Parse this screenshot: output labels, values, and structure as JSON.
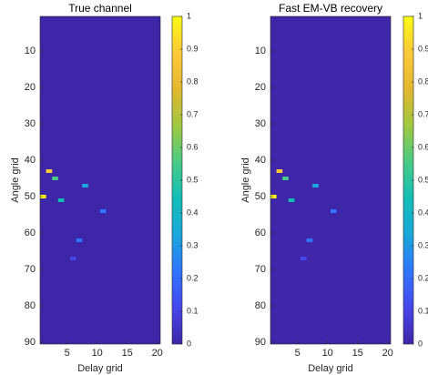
{
  "chart_data": [
    {
      "type": "heatmap",
      "title": "True channel",
      "xlabel": "Delay grid",
      "ylabel": "Angle grid",
      "x": [
        1,
        2,
        3,
        4,
        8,
        11,
        7,
        6
      ],
      "y": [
        50,
        43,
        45,
        51,
        47,
        54,
        62,
        67
      ],
      "values": [
        1,
        0.85,
        0.55,
        0.45,
        0.3,
        0.25,
        0.22,
        0.15
      ],
      "xlim": [
        0.5,
        20.5
      ],
      "ylim": [
        90.5,
        0.5
      ],
      "xticks": [
        5,
        10,
        15,
        20
      ],
      "yticks": [
        10,
        20,
        30,
        40,
        50,
        60,
        70,
        80,
        90
      ],
      "clim": [
        0,
        1
      ],
      "cticks": [
        0,
        0.1,
        0.2,
        0.3,
        0.4,
        0.5,
        0.6,
        0.7,
        0.8,
        0.9,
        1
      ],
      "colormap": [
        "#3e26a8",
        "#4746eb",
        "#2f75fe",
        "#1aa7da",
        "#13beb7",
        "#48cb86",
        "#9fc840",
        "#e3b82f",
        "#fcc938",
        "#f9fb15"
      ]
    },
    {
      "type": "heatmap",
      "title": "Fast EM-VB recovery",
      "xlabel": "Delay grid",
      "ylabel": "Angle grid",
      "x": [
        1,
        2,
        3,
        4,
        8,
        11,
        7,
        6
      ],
      "y": [
        50,
        43,
        45,
        51,
        47,
        54,
        62,
        67
      ],
      "values": [
        1,
        0.85,
        0.55,
        0.45,
        0.3,
        0.25,
        0.22,
        0.15
      ],
      "xlim": [
        0.5,
        20.5
      ],
      "ylim": [
        90.5,
        0.5
      ],
      "xticks": [
        5,
        10,
        15,
        20
      ],
      "yticks": [
        10,
        20,
        30,
        40,
        50,
        60,
        70,
        80,
        90
      ],
      "clim": [
        0,
        1
      ],
      "cticks": [
        0,
        0.1,
        0.2,
        0.3,
        0.4,
        0.5,
        0.6,
        0.7,
        0.8,
        0.9,
        1
      ],
      "colormap": [
        "#3e26a8",
        "#4746eb",
        "#2f75fe",
        "#1aa7da",
        "#13beb7",
        "#48cb86",
        "#9fc840",
        "#e3b82f",
        "#fcc938",
        "#f9fb15"
      ]
    }
  ]
}
